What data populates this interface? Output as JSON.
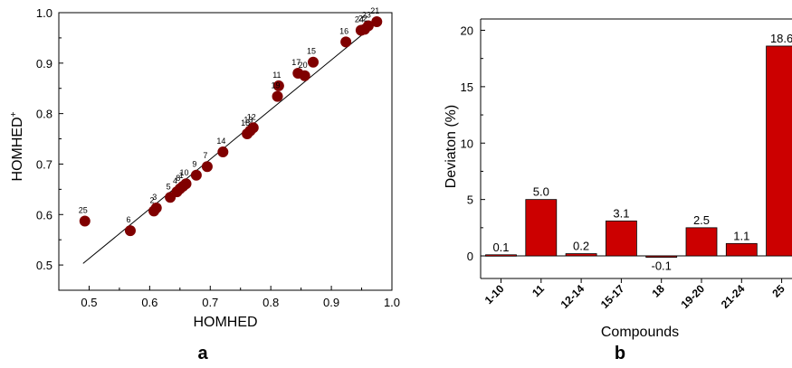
{
  "panel_labels": {
    "a": "a",
    "b": "b"
  },
  "chart_data": [
    {
      "type": "scatter",
      "xlabel": "HOMHED",
      "ylabel": "HOMHED",
      "ylabel_sup": "+",
      "xlim": [
        0.45,
        1.0
      ],
      "ylim": [
        0.45,
        1.0
      ],
      "xticks": [
        "0.5",
        "0.6",
        "0.7",
        "0.8",
        "0.9",
        "1.0"
      ],
      "yticks": [
        "0.5",
        "0.6",
        "0.7",
        "0.8",
        "0.9",
        "1.0"
      ],
      "marker_color": "#800000",
      "fit_line": {
        "x": [
          0.49,
          0.98
        ],
        "y": [
          0.503,
          0.985
        ]
      },
      "points": [
        {
          "label": "25",
          "x": 0.493,
          "y": 0.587
        },
        {
          "label": "6",
          "x": 0.568,
          "y": 0.568
        },
        {
          "label": "2",
          "x": 0.607,
          "y": 0.607
        },
        {
          "label": "3",
          "x": 0.611,
          "y": 0.613
        },
        {
          "label": "5",
          "x": 0.634,
          "y": 0.634
        },
        {
          "label": "4",
          "x": 0.645,
          "y": 0.645
        },
        {
          "label": "8",
          "x": 0.65,
          "y": 0.651
        },
        {
          "label": "1",
          "x": 0.655,
          "y": 0.656
        },
        {
          "label": "10",
          "x": 0.66,
          "y": 0.661
        },
        {
          "label": "9",
          "x": 0.677,
          "y": 0.678
        },
        {
          "label": "7",
          "x": 0.695,
          "y": 0.695
        },
        {
          "label": "14",
          "x": 0.721,
          "y": 0.724
        },
        {
          "label": "18",
          "x": 0.761,
          "y": 0.76
        },
        {
          "label": "13",
          "x": 0.766,
          "y": 0.766
        },
        {
          "label": "12",
          "x": 0.771,
          "y": 0.772
        },
        {
          "label": "19",
          "x": 0.811,
          "y": 0.834
        },
        {
          "label": "11",
          "x": 0.813,
          "y": 0.855
        },
        {
          "label": "17",
          "x": 0.845,
          "y": 0.88
        },
        {
          "label": "20",
          "x": 0.856,
          "y": 0.875
        },
        {
          "label": "15",
          "x": 0.87,
          "y": 0.902
        },
        {
          "label": "16",
          "x": 0.924,
          "y": 0.942
        },
        {
          "label": "24",
          "x": 0.949,
          "y": 0.965
        },
        {
          "label": "22",
          "x": 0.955,
          "y": 0.967
        },
        {
          "label": "23",
          "x": 0.961,
          "y": 0.974
        },
        {
          "label": "21",
          "x": 0.975,
          "y": 0.982
        }
      ]
    },
    {
      "type": "bar",
      "xlabel": "Compounds",
      "ylabel": "Deviaton (%)",
      "categories": [
        "1-10",
        "11",
        "12-14",
        "15-17",
        "18",
        "19-20",
        "21-24",
        "25"
      ],
      "values": [
        0.1,
        5.0,
        0.2,
        3.1,
        -0.1,
        2.5,
        1.1,
        18.6
      ],
      "value_labels": [
        "0.1",
        "5.0",
        "0.2",
        "3.1",
        "-0.1",
        "2.5",
        "1.1",
        "18.6"
      ],
      "ylim": [
        -2,
        21
      ],
      "yticks": [
        "0",
        "5",
        "10",
        "15",
        "20"
      ],
      "bar_color": "#cc0000"
    }
  ]
}
